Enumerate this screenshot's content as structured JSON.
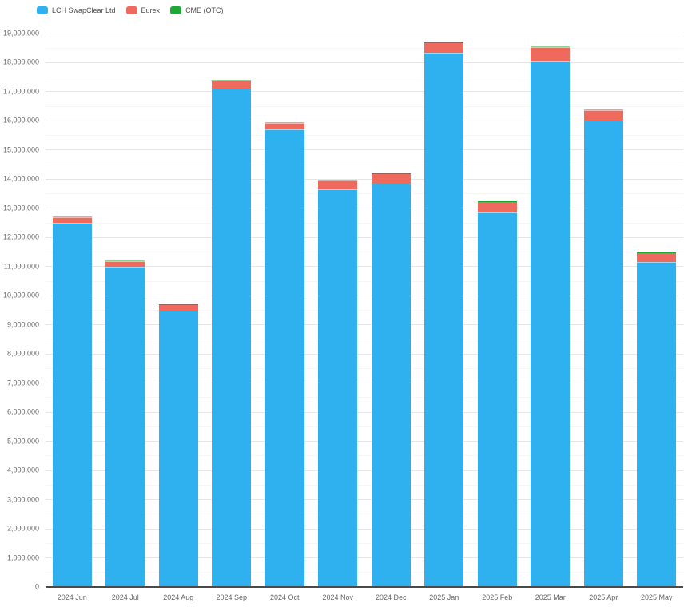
{
  "chart_data": {
    "type": "bar",
    "stacked": true,
    "title": "",
    "xlabel": "",
    "ylabel": "",
    "grid": true,
    "legend_position": "top-left",
    "ylim": [
      0,
      19000000
    ],
    "y_tick_step": 1000000,
    "y_minor_step": 500000,
    "categories": [
      "2024 Jun",
      "2024 Jul",
      "2024 Aug",
      "2024 Sep",
      "2024 Oct",
      "2024 Nov",
      "2024 Dec",
      "2025 Jan",
      "2025 Feb",
      "2025 Mar",
      "2025 Apr",
      "2025 May"
    ],
    "series": [
      {
        "name": "LCH SwapClear Ltd",
        "color": "#2fb1ef",
        "values": [
          12500000,
          11000000,
          9500000,
          17100000,
          15700000,
          13650000,
          13850000,
          18350000,
          12850000,
          18050000,
          16000000,
          11150000
        ]
      },
      {
        "name": "Eurex",
        "color": "#ee6a5c",
        "values": [
          200000,
          200000,
          200000,
          280000,
          230000,
          300000,
          340000,
          340000,
          380000,
          490000,
          370000,
          330000
        ]
      },
      {
        "name": "CME (OTC)",
        "color": "#1ea734",
        "values": [
          20000,
          20000,
          20000,
          20000,
          20000,
          20000,
          20000,
          20000,
          20000,
          20000,
          20000,
          20000
        ]
      }
    ],
    "axis_colors": {
      "grid_minor": "#f6f6f6",
      "grid_major": "#e6e6e6",
      "axis_line": "#4a4a4a",
      "label_text": "#666666",
      "legend_text": "#4d4d4d"
    }
  }
}
